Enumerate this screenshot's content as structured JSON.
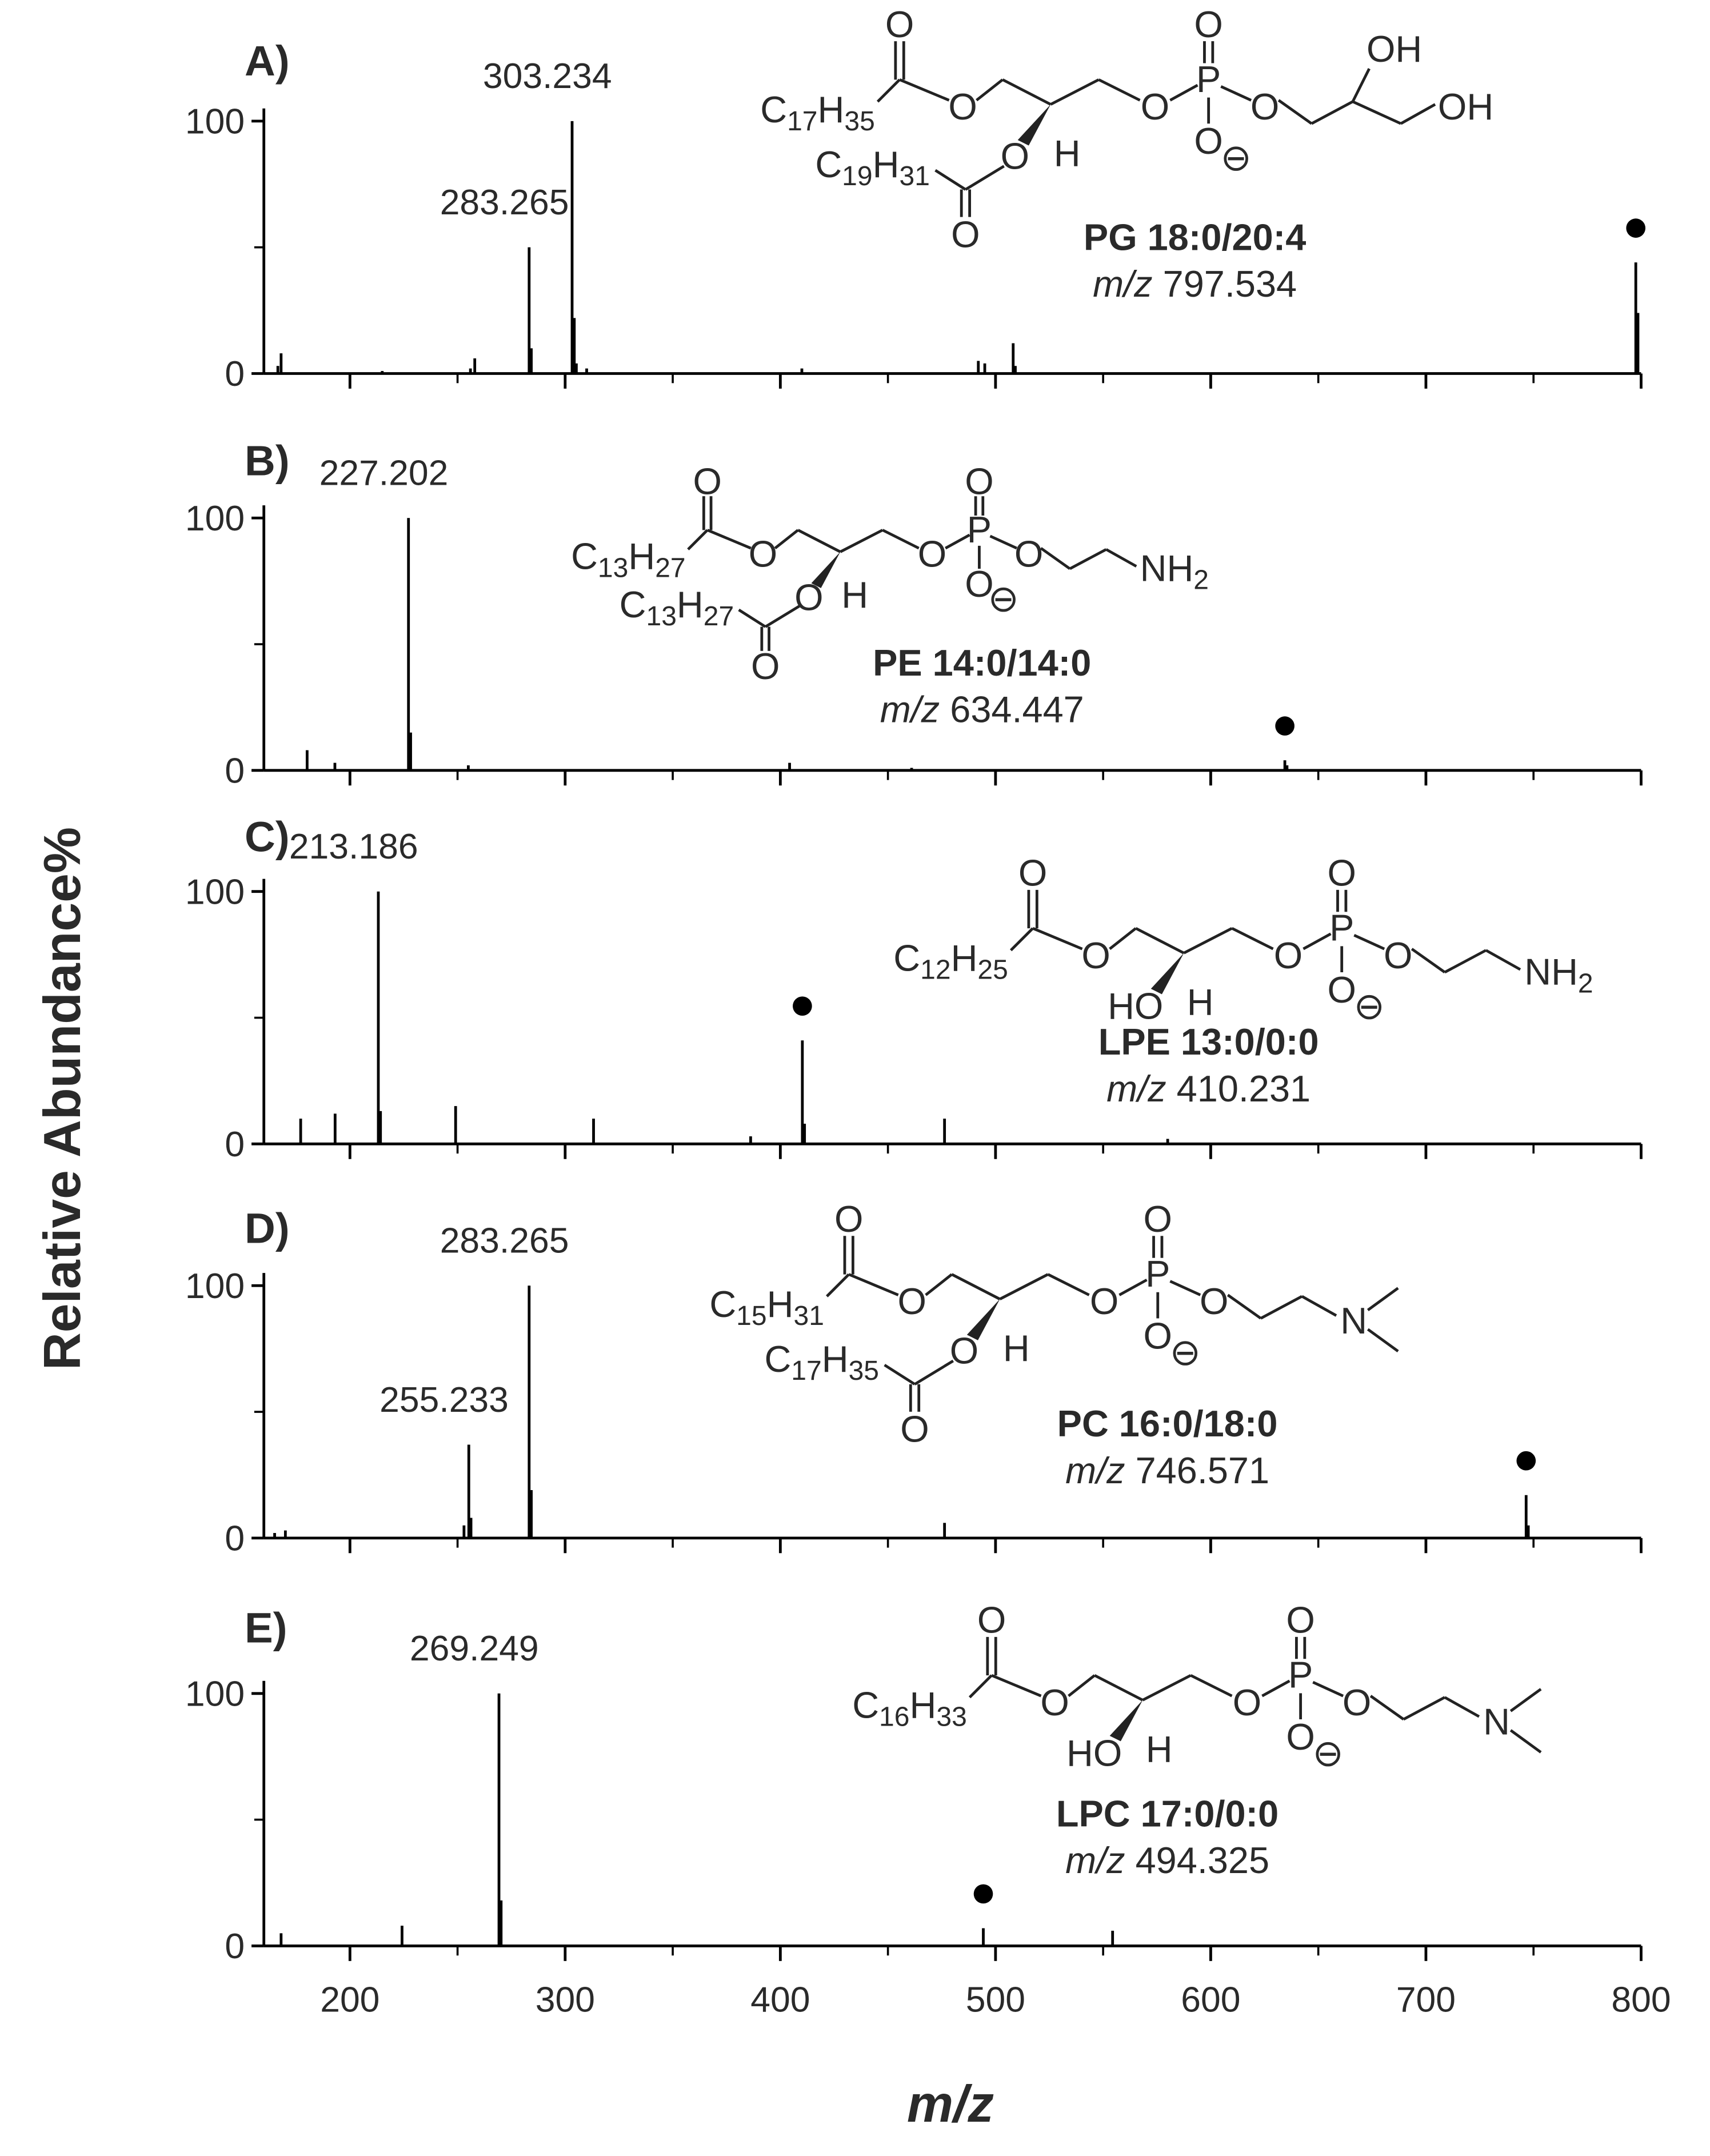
{
  "ylabel": "Relative Abundance%",
  "xlabel": "m/z",
  "atom_labels": {
    "O": "O",
    "P": "P",
    "H": "H",
    "charge": "⊖"
  },
  "chart_data": [
    {
      "type": "spectrum",
      "panel_label": "A)",
      "compound": "PG 18:0/20:4",
      "mz_prefix": "m/z",
      "precursor": 797.534,
      "color": "#000000",
      "x": [
        166.5,
        168.0,
        215,
        256,
        258,
        283.265,
        284.27,
        303.234,
        304.24,
        305.2,
        310,
        410,
        492,
        495,
        508.2,
        509.2,
        797.534,
        798.54
      ],
      "values": [
        3,
        8,
        1,
        2,
        6,
        50,
        10,
        100,
        22,
        4,
        2,
        2,
        5,
        4,
        12,
        3,
        44,
        24
      ],
      "peak_labels": [
        null,
        null,
        null,
        null,
        null,
        "283.265",
        null,
        "303.234",
        null,
        null,
        null,
        null,
        null,
        null,
        null,
        null,
        null,
        null
      ],
      "xlim": [
        160,
        800
      ],
      "xticks": [
        200,
        300,
        400,
        500,
        600,
        700,
        800
      ],
      "xminor_ticks": [
        250,
        350,
        450,
        550,
        650,
        750
      ],
      "xtick_labels": false,
      "ylim": [
        0,
        105
      ],
      "yticks": [
        0,
        100
      ],
      "yminor_ticks": [
        50
      ],
      "structure": {
        "head_type": "PG",
        "sn2_ester": true,
        "sn1": "C17H35",
        "sn2": "C19H31",
        "head_labels": [
          "OH",
          "OH"
        ]
      }
    },
    {
      "type": "spectrum",
      "panel_label": "B)",
      "compound": "PE 14:0/14:0",
      "mz_prefix": "m/z",
      "precursor": 634.447,
      "color": "#000000",
      "x": [
        180.1,
        193,
        227.202,
        228.21,
        255,
        404.3,
        461,
        634.447,
        635.45
      ],
      "values": [
        8,
        3,
        100,
        15,
        2,
        3,
        1,
        4,
        2
      ],
      "peak_labels": [
        null,
        null,
        "227.202",
        null,
        null,
        null,
        null,
        null,
        null
      ],
      "xlim": [
        160,
        800
      ],
      "xticks": [
        200,
        300,
        400,
        500,
        600,
        700,
        800
      ],
      "xminor_ticks": [
        250,
        350,
        450,
        550,
        650,
        750
      ],
      "xtick_labels": false,
      "ylim": [
        0,
        105
      ],
      "yticks": [
        0,
        100
      ],
      "yminor_ticks": [
        50
      ],
      "structure": {
        "head_type": "PE",
        "sn2_ester": true,
        "sn1": "C13H27",
        "sn2": "C13H27",
        "head_labels": [
          "NH2"
        ]
      }
    },
    {
      "type": "spectrum",
      "panel_label": "C)",
      "compound": "LPE 13:0/0:0",
      "mz_prefix": "m/z",
      "precursor": 410.231,
      "color": "#000000",
      "x": [
        177.1,
        193.1,
        213.186,
        214.19,
        249.1,
        313.2,
        386.2,
        410.231,
        411.24,
        476.3,
        580
      ],
      "values": [
        10,
        12,
        100,
        13,
        15,
        10,
        3,
        41,
        8,
        10,
        2
      ],
      "peak_labels": [
        null,
        null,
        "213.186",
        null,
        null,
        null,
        null,
        null,
        null,
        null,
        null
      ],
      "xlim": [
        160,
        800
      ],
      "xticks": [
        200,
        300,
        400,
        500,
        600,
        700,
        800
      ],
      "xminor_ticks": [
        250,
        350,
        450,
        550,
        650,
        750
      ],
      "xtick_labels": false,
      "ylim": [
        0,
        105
      ],
      "yticks": [
        0,
        100
      ],
      "yminor_ticks": [
        50
      ],
      "structure": {
        "head_type": "PE",
        "sn2_ester": false,
        "sn1": "C12H25",
        "sn2": "HO",
        "head_labels": [
          "NH2"
        ]
      }
    },
    {
      "type": "spectrum",
      "panel_label": "D)",
      "compound": "PC 16:0/18:0",
      "mz_prefix": "m/z",
      "precursor": 746.571,
      "color": "#000000",
      "x": [
        165,
        170,
        253,
        255.233,
        256.24,
        283.265,
        284.27,
        476.3,
        746.571,
        747.58
      ],
      "values": [
        2,
        3,
        5,
        37,
        8,
        100,
        19,
        6,
        17,
        5
      ],
      "peak_labels": [
        null,
        null,
        null,
        "255.233",
        null,
        "283.265",
        null,
        null,
        null,
        null
      ],
      "xlim": [
        160,
        800
      ],
      "xticks": [
        200,
        300,
        400,
        500,
        600,
        700,
        800
      ],
      "xminor_ticks": [
        250,
        350,
        450,
        550,
        650,
        750
      ],
      "xtick_labels": false,
      "ylim": [
        0,
        105
      ],
      "yticks": [
        0,
        100
      ],
      "yminor_ticks": [
        50
      ],
      "structure": {
        "head_type": "PC",
        "sn2_ester": true,
        "sn1": "C15H31",
        "sn2": "C17H35",
        "head_labels": [
          "N"
        ]
      }
    },
    {
      "type": "spectrum",
      "panel_label": "E)",
      "compound": "LPC 17:0/0:0",
      "mz_prefix": "m/z",
      "precursor": 494.325,
      "color": "#000000",
      "x": [
        168,
        224.2,
        269.249,
        270.25,
        494.325,
        554.4
      ],
      "values": [
        5,
        8,
        100,
        18,
        7,
        6
      ],
      "peak_labels": [
        null,
        null,
        "269.249",
        null,
        null,
        null
      ],
      "xlim": [
        160,
        800
      ],
      "xticks": [
        200,
        300,
        400,
        500,
        600,
        700,
        800
      ],
      "xminor_ticks": [
        250,
        350,
        450,
        550,
        650,
        750
      ],
      "xtick_labels": true,
      "ylim": [
        0,
        105
      ],
      "yticks": [
        0,
        100
      ],
      "yminor_ticks": [
        50
      ],
      "structure": {
        "head_type": "PC",
        "sn2_ester": false,
        "sn1": "C16H33",
        "sn2": "HO",
        "head_labels": [
          "N"
        ]
      }
    }
  ]
}
